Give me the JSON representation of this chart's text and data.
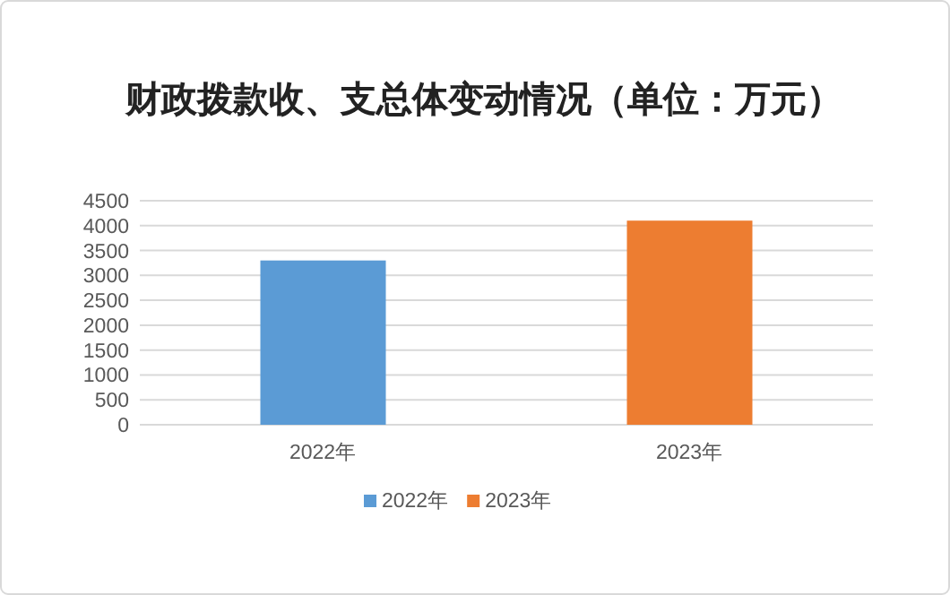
{
  "chart_data": {
    "type": "bar",
    "title": "财政拨款收、支总体变动情况（单位：万元）",
    "categories": [
      "2022年",
      "2023年"
    ],
    "series": [
      {
        "name": "2022年",
        "color": "#5b9bd5",
        "values": [
          3300,
          null
        ]
      },
      {
        "name": "2023年",
        "color": "#ed7d31",
        "values": [
          null,
          4100
        ]
      }
    ],
    "ylim": [
      0,
      4500
    ],
    "yticks": [
      0,
      500,
      1000,
      1500,
      2000,
      2500,
      3000,
      3500,
      4000,
      4500
    ],
    "grid": "y",
    "legend": "bottom"
  }
}
